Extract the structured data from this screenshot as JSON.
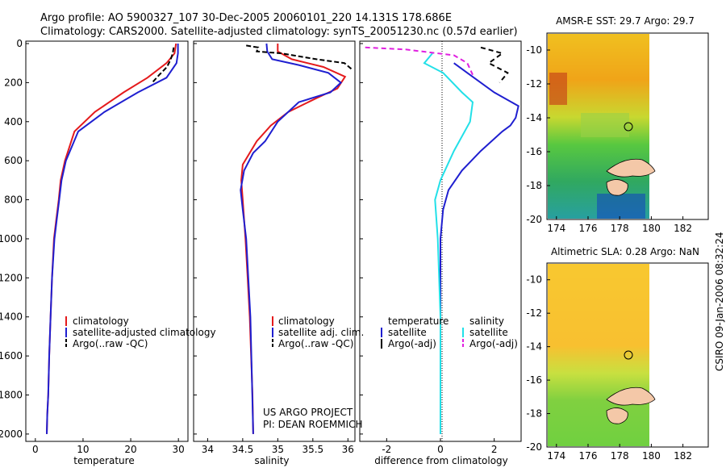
{
  "header": {
    "line1": "Argo profile: AO 5900327_107 30-Dec-2005 20060101_220 14.131S 178.686E",
    "line2": "Climatology: CARS2000. Satellite-adjusted climatology: synTS_20051230.nc (0.57d earlier)"
  },
  "colors": {
    "climatology": "#e41a1c",
    "satellite": "#1f1fd0",
    "argo": "#000000",
    "satellite_salinity": "#22e0e8",
    "argo_salinity": "#e020e0",
    "land": "#f4c8a8"
  },
  "shared": {
    "depth_ticks": [
      "0",
      "200",
      "400",
      "600",
      "800",
      "1000",
      "1200",
      "1400",
      "1600",
      "1800",
      "2000"
    ]
  },
  "panels": {
    "temperature": {
      "xlabel": "temperature",
      "xticks": [
        "0",
        "10",
        "20",
        "30"
      ],
      "legend": [
        "climatology",
        "satellite-adjusted climatology",
        "Argo(..raw -QC)"
      ]
    },
    "salinity": {
      "xlabel": "salinity",
      "xticks": [
        "34",
        "34.5",
        "35",
        "35.5",
        "36"
      ],
      "legend": [
        "climatology",
        "satellite adj. clim.",
        "Argo(..raw -QC)"
      ],
      "credit1": "US ARGO PROJECT",
      "credit2": "PI: DEAN ROEMMICH"
    },
    "difference": {
      "xlabel": "difference from climatology",
      "xticks": [
        "-2",
        "0",
        "2"
      ],
      "legend_head_t": "temperature",
      "legend_head_s": "salinity",
      "legend_t": [
        "satellite",
        "Argo(-adj)"
      ],
      "legend_s": [
        "satellite",
        "Argo(-adj)"
      ]
    },
    "sst_map": {
      "title": "AMSR-E SST: 29.7 Argo: 29.7",
      "xticks": [
        "174",
        "176",
        "178",
        "180",
        "182"
      ],
      "yticks": [
        "-10",
        "-12",
        "-14",
        "-16",
        "-18",
        "-20"
      ]
    },
    "sla_map": {
      "title": "Altimetric SLA: 0.28 Argo: NaN",
      "xticks": [
        "174",
        "176",
        "178",
        "180",
        "182"
      ],
      "yticks": [
        "-10",
        "-12",
        "-14",
        "-16",
        "-18",
        "-20"
      ]
    }
  },
  "side_label": "CSIRO 09-Jan-2006 08:32:24",
  "chart_data": [
    {
      "type": "line",
      "xlabel": "temperature",
      "ylim": [
        2050,
        0
      ],
      "xlim": [
        -2,
        32
      ],
      "series": [
        {
          "name": "climatology",
          "x": [
            29.5,
            29.2,
            27.5,
            23.5,
            18.5,
            12.5,
            8.2,
            6.2,
            5.3,
            4.9,
            4.4,
            3.9,
            3.5,
            3.2,
            2.9,
            2.7,
            2.5,
            2.4
          ],
          "y": [
            0,
            50,
            100,
            175,
            250,
            350,
            450,
            600,
            700,
            800,
            900,
            1000,
            1200,
            1400,
            1600,
            1800,
            1900,
            2000
          ]
        },
        {
          "name": "satellite-adjusted climatology",
          "x": [
            29.9,
            29.9,
            29.6,
            27.5,
            21.5,
            14.5,
            9.0,
            6.4,
            5.5,
            5.0,
            4.5,
            4.0,
            3.5,
            3.2,
            2.9,
            2.7,
            2.5,
            2.4
          ],
          "y": [
            0,
            50,
            100,
            175,
            250,
            350,
            450,
            600,
            700,
            800,
            900,
            1000,
            1200,
            1400,
            1600,
            1800,
            1900,
            2000
          ]
        },
        {
          "name": "Argo(..raw -QC)",
          "x": [
            29.0,
            28.8,
            28.4,
            27.6,
            26.0,
            24.5
          ],
          "y": [
            20,
            50,
            80,
            120,
            160,
            200
          ]
        }
      ]
    },
    {
      "type": "line",
      "xlabel": "salinity",
      "ylim": [
        2050,
        0
      ],
      "xlim": [
        33.8,
        36.1
      ],
      "series": [
        {
          "name": "climatology",
          "x": [
            35.0,
            35.0,
            35.2,
            35.65,
            35.96,
            35.85,
            35.55,
            35.15,
            34.9,
            34.7,
            34.5,
            34.48,
            34.5,
            34.54,
            34.57,
            34.6,
            34.62,
            34.64,
            34.65
          ],
          "y": [
            0,
            40,
            80,
            120,
            170,
            230,
            280,
            350,
            420,
            500,
            620,
            700,
            800,
            1000,
            1200,
            1400,
            1600,
            1800,
            2000
          ]
        },
        {
          "name": "satellite adj. clim.",
          "x": [
            34.84,
            34.85,
            34.92,
            35.3,
            35.72,
            35.9,
            35.75,
            35.3,
            35.0,
            34.82,
            34.65,
            34.52,
            34.47,
            34.5,
            34.55,
            34.58,
            34.61,
            34.63,
            34.65
          ],
          "y": [
            0,
            40,
            80,
            110,
            150,
            200,
            250,
            300,
            400,
            500,
            560,
            650,
            750,
            850,
            1000,
            1200,
            1400,
            1700,
            2000
          ]
        },
        {
          "name": "Argo(..raw -QC)",
          "x": [
            34.55,
            34.72,
            34.7,
            35.05,
            35.55,
            35.95,
            36.05
          ],
          "y": [
            10,
            20,
            40,
            50,
            80,
            100,
            130
          ]
        }
      ]
    },
    {
      "type": "line",
      "xlabel": "difference from climatology",
      "ylim": [
        2050,
        0
      ],
      "xlim": [
        -3,
        3
      ],
      "series": [
        {
          "name": "temperature satellite",
          "x": [
            0.5,
            1.0,
            2.0,
            2.9,
            2.8,
            2.6,
            2.3,
            1.5,
            0.8,
            0.3,
            0.1,
            0.0,
            0.0
          ],
          "y": [
            100,
            150,
            250,
            320,
            380,
            420,
            450,
            550,
            650,
            750,
            850,
            1000,
            2000
          ]
        },
        {
          "name": "salinity satellite",
          "x": [
            -0.3,
            -0.6,
            0.1,
            0.8,
            1.2,
            1.1,
            0.5,
            0.0,
            -0.2,
            -0.1,
            0.0,
            0.0,
            0.0
          ],
          "y": [
            50,
            100,
            150,
            250,
            300,
            400,
            550,
            700,
            800,
            1000,
            1400,
            1700,
            2000
          ]
        },
        {
          "name": "temperature Argo(-adj)",
          "x": [
            1.5,
            2.3,
            1.8,
            2.5,
            2.2
          ],
          "y": [
            20,
            50,
            100,
            150,
            200
          ]
        },
        {
          "name": "salinity Argo(-adj)",
          "x": [
            -2.8,
            -1.3,
            0.5,
            1.0,
            1.2
          ],
          "y": [
            20,
            30,
            60,
            100,
            160
          ]
        }
      ]
    }
  ]
}
